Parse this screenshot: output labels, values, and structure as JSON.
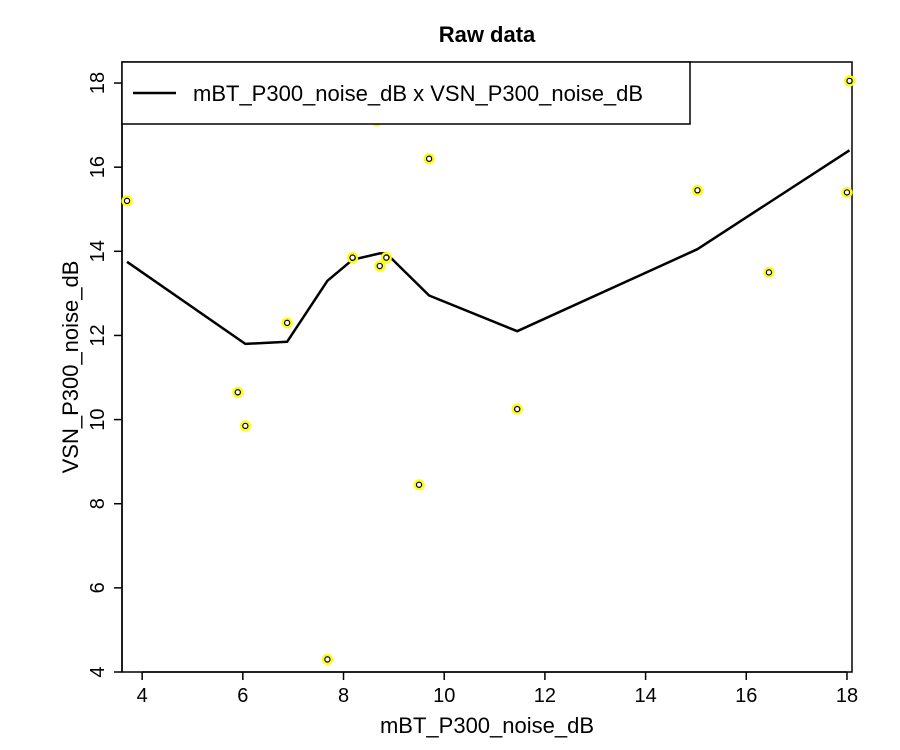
{
  "chart_data": {
    "type": "scatter",
    "title": "Raw data",
    "xlabel": "mBT_P300_noise_dB",
    "ylabel": "VSN_P300_noise_dB",
    "xlim": [
      3.6,
      18.1
    ],
    "ylim": [
      4,
      18.5
    ],
    "x_ticks": [
      "4",
      "6",
      "8",
      "10",
      "12",
      "14",
      "16",
      "18"
    ],
    "y_ticks": [
      "4",
      "6",
      "8",
      "10",
      "12",
      "14",
      "16",
      "18"
    ],
    "grid": false,
    "legend_position": "top-left",
    "points": {
      "x": [
        3.7,
        5.9,
        6.05,
        6.88,
        7.68,
        8.18,
        8.66,
        8.72,
        8.85,
        9.5,
        9.7,
        11.45,
        15.03,
        16.45,
        18.0,
        18.05
      ],
      "y": [
        15.2,
        10.65,
        9.85,
        12.3,
        4.3,
        13.85,
        17.1,
        13.65,
        13.85,
        8.45,
        16.2,
        10.25,
        15.45,
        13.5,
        15.4,
        18.05
      ],
      "fill_color": "#ffff00",
      "stroke_color": "#000000"
    },
    "series": [
      {
        "name": "mBT_P300_noise_dB x VSN_P300_noise_dB",
        "color": "#000000",
        "x": [
          3.7,
          6.05,
          6.88,
          7.68,
          8.18,
          8.72,
          8.85,
          9.7,
          11.45,
          15.03,
          18.05
        ],
        "y": [
          13.75,
          11.8,
          11.85,
          13.3,
          13.8,
          13.95,
          13.95,
          12.95,
          12.1,
          14.05,
          16.4
        ]
      }
    ]
  }
}
